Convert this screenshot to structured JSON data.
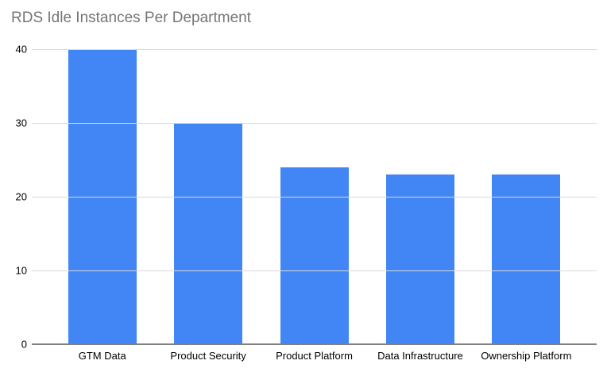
{
  "page": {
    "background_color": "#ffffff"
  },
  "chart_data": {
    "type": "bar",
    "title": "RDS Idle Instances Per Department",
    "categories": [
      "GTM Data",
      "Product Security",
      "Product Platform",
      "Data Infrastructure",
      "Ownership Platform"
    ],
    "values": [
      40,
      30,
      24,
      23,
      23
    ],
    "xlabel": "",
    "ylabel": "",
    "ylim": [
      0,
      40
    ],
    "yticks": [
      0,
      10,
      20,
      30,
      40
    ],
    "grid": true,
    "legend": "none",
    "colors": {
      "bar": "#4285f4",
      "title": "#757575",
      "gridline": "#d9d9d9",
      "axis_line": "#808080",
      "tick_label": "#000000"
    }
  }
}
